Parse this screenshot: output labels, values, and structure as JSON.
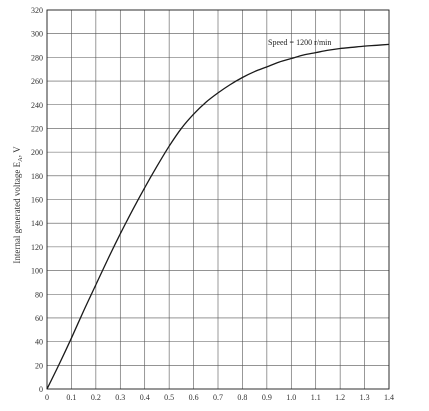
{
  "chart_data": {
    "type": "line",
    "title": "",
    "xlabel": "",
    "ylabel": "Internal generated voltage E",
    "ylabel_subscript": "A",
    "ylabel_unit": ", V",
    "xlim": [
      0,
      1.4
    ],
    "ylim": [
      0,
      320
    ],
    "x_ticks": [
      0,
      0.1,
      0.2,
      0.3,
      0.4,
      0.5,
      0.6,
      0.7,
      0.8,
      0.9,
      1.0,
      1.1,
      1.2,
      1.3,
      1.4
    ],
    "x_tick_labels": [
      "0",
      "0.1",
      "0.2",
      "0.3",
      "0.4",
      "0.5",
      "0.6",
      "0.7",
      "0.8",
      "0.9",
      "1.0",
      "1.1",
      "1.2",
      "1.3",
      "1.4"
    ],
    "y_ticks": [
      0,
      20,
      40,
      60,
      80,
      100,
      120,
      140,
      160,
      180,
      200,
      220,
      240,
      260,
      280,
      300,
      320
    ],
    "y_tick_labels": [
      "0",
      "20",
      "40",
      "60",
      "80",
      "100",
      "120",
      "140",
      "160",
      "180",
      "200",
      "220",
      "240",
      "260",
      "280",
      "300",
      "320"
    ],
    "grid": true,
    "legend": false,
    "annotation": "Speed = 1200 r/min",
    "series": [
      {
        "x": [
          0,
          0.05,
          0.1,
          0.15,
          0.2,
          0.25,
          0.3,
          0.35,
          0.4,
          0.45,
          0.5,
          0.55,
          0.6,
          0.65,
          0.7,
          0.75,
          0.8,
          0.85,
          0.9,
          0.95,
          1.0,
          1.05,
          1.1,
          1.15,
          1.2,
          1.25,
          1.3,
          1.35,
          1.4
        ],
        "y": [
          0,
          21,
          43,
          66,
          88,
          110,
          131,
          151,
          170,
          188,
          205,
          220,
          232,
          242,
          250,
          257,
          263,
          268,
          272,
          276,
          279,
          282,
          284,
          286,
          287.5,
          288.5,
          289.5,
          290.2,
          291
        ]
      }
    ],
    "colors": {
      "line": "#1a1a1a",
      "grid": "#555555",
      "frame": "#222222",
      "background": "#ffffff"
    }
  }
}
